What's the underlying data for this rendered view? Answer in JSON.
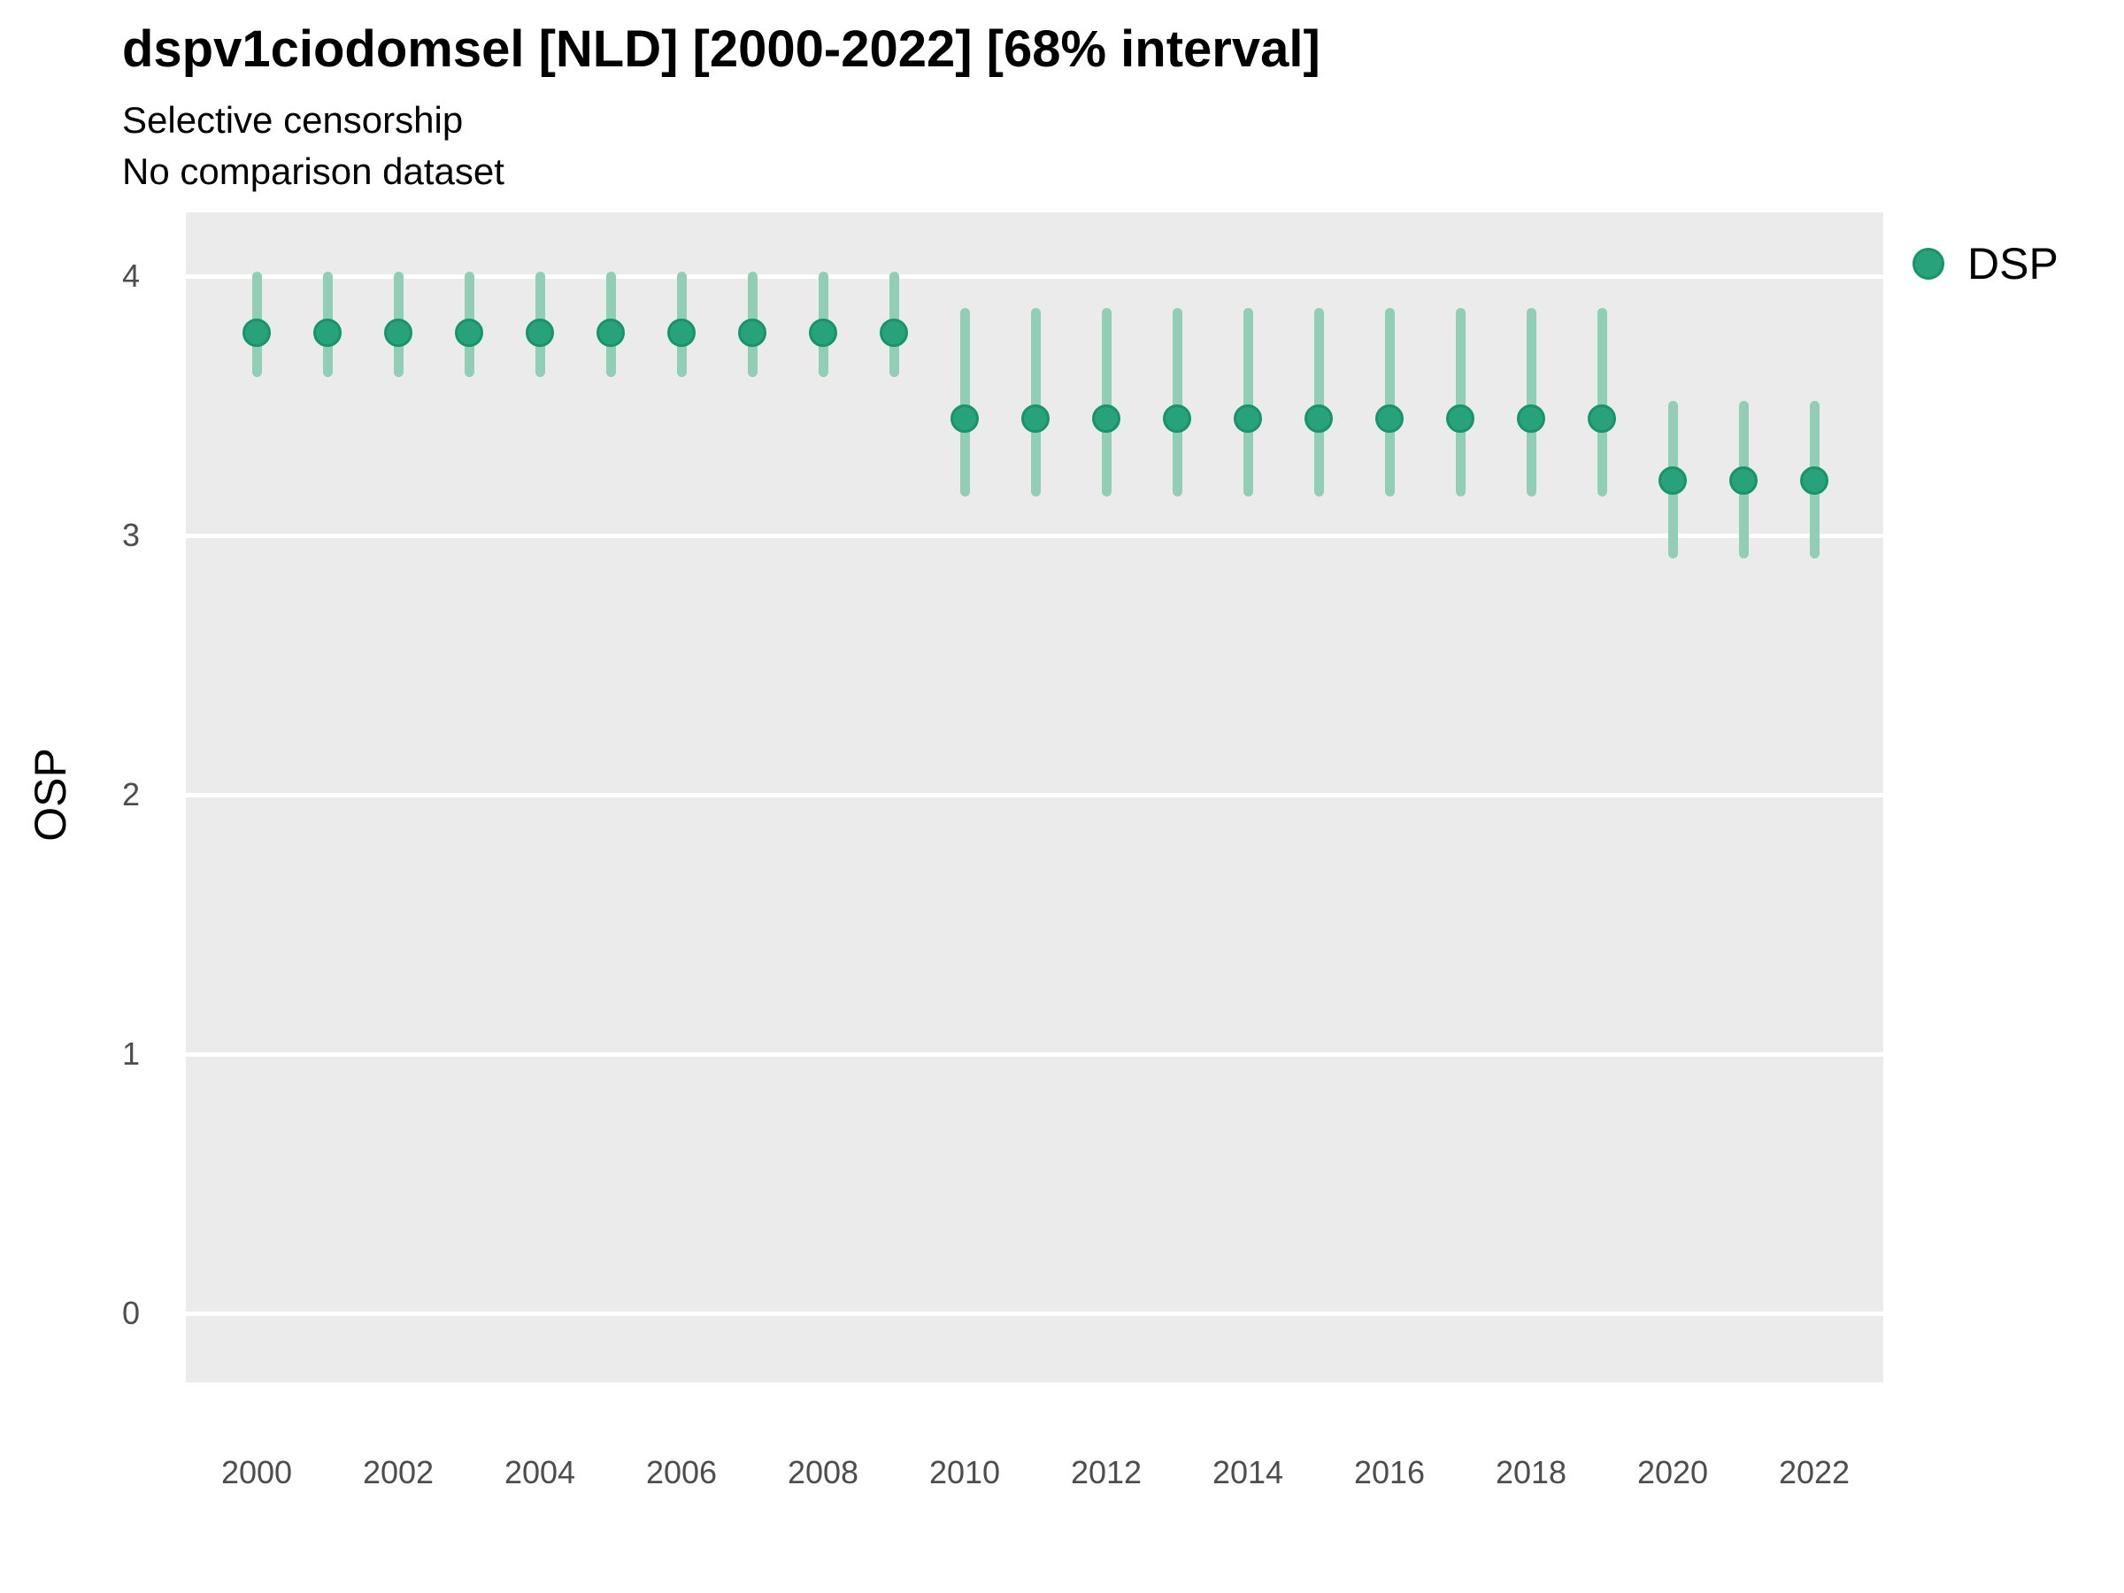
{
  "header": {
    "title": "dspv1ciodomsel [NLD] [2000-2022] [68% interval]",
    "subtitle": "Selective censorship",
    "caption": "No comparison dataset"
  },
  "legend": {
    "label": "DSP"
  },
  "axes": {
    "y_label": "OSP",
    "y_ticks": [
      4,
      3,
      2,
      1,
      0
    ],
    "x_ticks": [
      2000,
      2002,
      2004,
      2006,
      2008,
      2010,
      2012,
      2014,
      2016,
      2018,
      2020,
      2022
    ]
  },
  "colors": {
    "point_fill": "#28a27b",
    "point_stroke": "#17946a",
    "interval_bar": "#90ceb5",
    "panel_bg": "#ebebeb",
    "gridline": "#ffffff",
    "tick_text": "#4d4d4d",
    "text": "#000000"
  },
  "chart_data": {
    "type": "scatter",
    "title": "dspv1ciodomsel [NLD] [2000-2022] [68% interval]",
    "subtitle": "Selective censorship",
    "caption": "No comparison dataset",
    "xlabel": "",
    "ylabel": "OSP",
    "interval_level": "68%",
    "ylim": [
      -0.26,
      4.25
    ],
    "xlim": [
      1999,
      2023
    ],
    "y_ticks": [
      0,
      1,
      2,
      3,
      4
    ],
    "x_ticks": [
      2000,
      2002,
      2004,
      2006,
      2008,
      2010,
      2012,
      2014,
      2016,
      2018,
      2020,
      2022
    ],
    "grid": "major horizontal white lines on gray panel",
    "legend_position": "right-top",
    "series": [
      {
        "name": "DSP",
        "x": [
          2000,
          2001,
          2002,
          2003,
          2004,
          2005,
          2006,
          2007,
          2008,
          2009,
          2010,
          2011,
          2012,
          2013,
          2014,
          2015,
          2016,
          2017,
          2018,
          2019,
          2020,
          2021,
          2022
        ],
        "y": [
          3.78,
          3.78,
          3.78,
          3.78,
          3.78,
          3.78,
          3.78,
          3.78,
          3.78,
          3.78,
          3.45,
          3.45,
          3.45,
          3.45,
          3.45,
          3.45,
          3.45,
          3.45,
          3.45,
          3.45,
          3.21,
          3.21,
          3.21
        ],
        "y_lo": [
          3.63,
          3.63,
          3.63,
          3.63,
          3.63,
          3.63,
          3.63,
          3.63,
          3.63,
          3.63,
          3.17,
          3.17,
          3.17,
          3.17,
          3.17,
          3.17,
          3.17,
          3.17,
          3.17,
          3.17,
          2.93,
          2.93,
          2.93
        ],
        "y_hi": [
          4.0,
          4.0,
          4.0,
          4.0,
          4.0,
          4.0,
          4.0,
          4.0,
          4.0,
          4.0,
          3.86,
          3.86,
          3.86,
          3.86,
          3.86,
          3.86,
          3.86,
          3.86,
          3.86,
          3.86,
          3.5,
          3.5,
          3.5
        ]
      }
    ]
  }
}
